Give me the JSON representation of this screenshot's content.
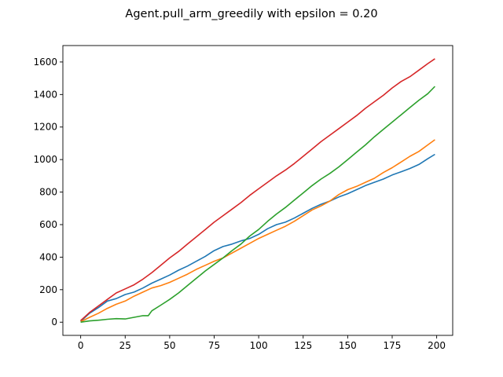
{
  "chart_data": {
    "type": "line",
    "title": "Agent.pull_arm_greedily with epsilon = 0.20",
    "xlabel": "",
    "ylabel": "",
    "xlim": [
      -10,
      209
    ],
    "ylim": [
      -81,
      1701
    ],
    "xticks": [
      0,
      25,
      50,
      75,
      100,
      125,
      150,
      175,
      200
    ],
    "yticks": [
      0,
      200,
      400,
      600,
      800,
      1000,
      1200,
      1400,
      1600
    ],
    "grid": false,
    "legend": "none",
    "series": [
      {
        "color": "#1f77b4",
        "points": [
          [
            0,
            5
          ],
          [
            5,
            55
          ],
          [
            10,
            90
          ],
          [
            15,
            130
          ],
          [
            20,
            145
          ],
          [
            25,
            170
          ],
          [
            30,
            185
          ],
          [
            35,
            210
          ],
          [
            40,
            240
          ],
          [
            45,
            265
          ],
          [
            50,
            290
          ],
          [
            55,
            320
          ],
          [
            60,
            345
          ],
          [
            65,
            375
          ],
          [
            70,
            405
          ],
          [
            75,
            440
          ],
          [
            80,
            465
          ],
          [
            85,
            480
          ],
          [
            90,
            500
          ],
          [
            95,
            515
          ],
          [
            100,
            540
          ],
          [
            105,
            575
          ],
          [
            110,
            600
          ],
          [
            115,
            615
          ],
          [
            120,
            640
          ],
          [
            125,
            670
          ],
          [
            130,
            700
          ],
          [
            135,
            725
          ],
          [
            140,
            745
          ],
          [
            145,
            770
          ],
          [
            150,
            790
          ],
          [
            155,
            815
          ],
          [
            160,
            840
          ],
          [
            165,
            860
          ],
          [
            170,
            880
          ],
          [
            175,
            905
          ],
          [
            180,
            925
          ],
          [
            185,
            945
          ],
          [
            190,
            970
          ],
          [
            195,
            1005
          ],
          [
            199,
            1032
          ]
        ]
      },
      {
        "color": "#ff7f0e",
        "points": [
          [
            0,
            3
          ],
          [
            5,
            30
          ],
          [
            10,
            55
          ],
          [
            15,
            85
          ],
          [
            20,
            110
          ],
          [
            25,
            130
          ],
          [
            30,
            160
          ],
          [
            35,
            185
          ],
          [
            40,
            210
          ],
          [
            45,
            225
          ],
          [
            50,
            245
          ],
          [
            55,
            270
          ],
          [
            60,
            295
          ],
          [
            65,
            325
          ],
          [
            70,
            350
          ],
          [
            75,
            375
          ],
          [
            80,
            395
          ],
          [
            85,
            425
          ],
          [
            90,
            455
          ],
          [
            95,
            485
          ],
          [
            100,
            515
          ],
          [
            105,
            540
          ],
          [
            110,
            565
          ],
          [
            115,
            590
          ],
          [
            120,
            620
          ],
          [
            125,
            655
          ],
          [
            130,
            690
          ],
          [
            135,
            715
          ],
          [
            140,
            745
          ],
          [
            145,
            785
          ],
          [
            150,
            815
          ],
          [
            155,
            835
          ],
          [
            160,
            860
          ],
          [
            165,
            885
          ],
          [
            170,
            920
          ],
          [
            175,
            950
          ],
          [
            180,
            985
          ],
          [
            185,
            1020
          ],
          [
            190,
            1050
          ],
          [
            195,
            1090
          ],
          [
            199,
            1122
          ]
        ]
      },
      {
        "color": "#2ca02c",
        "points": [
          [
            0,
            0
          ],
          [
            5,
            8
          ],
          [
            10,
            12
          ],
          [
            15,
            18
          ],
          [
            20,
            22
          ],
          [
            25,
            20
          ],
          [
            30,
            30
          ],
          [
            35,
            40
          ],
          [
            38,
            40
          ],
          [
            40,
            70
          ],
          [
            45,
            105
          ],
          [
            50,
            140
          ],
          [
            55,
            180
          ],
          [
            60,
            225
          ],
          [
            65,
            270
          ],
          [
            70,
            315
          ],
          [
            75,
            355
          ],
          [
            80,
            395
          ],
          [
            85,
            440
          ],
          [
            90,
            480
          ],
          [
            95,
            530
          ],
          [
            100,
            570
          ],
          [
            105,
            620
          ],
          [
            110,
            665
          ],
          [
            115,
            705
          ],
          [
            120,
            750
          ],
          [
            125,
            795
          ],
          [
            130,
            840
          ],
          [
            135,
            880
          ],
          [
            140,
            915
          ],
          [
            145,
            955
          ],
          [
            150,
            1000
          ],
          [
            155,
            1045
          ],
          [
            160,
            1090
          ],
          [
            165,
            1140
          ],
          [
            170,
            1185
          ],
          [
            175,
            1230
          ],
          [
            180,
            1275
          ],
          [
            185,
            1320
          ],
          [
            190,
            1365
          ],
          [
            195,
            1405
          ],
          [
            199,
            1450
          ]
        ]
      },
      {
        "color": "#d62728",
        "points": [
          [
            0,
            10
          ],
          [
            5,
            60
          ],
          [
            10,
            100
          ],
          [
            15,
            140
          ],
          [
            20,
            180
          ],
          [
            25,
            205
          ],
          [
            30,
            230
          ],
          [
            35,
            265
          ],
          [
            40,
            305
          ],
          [
            45,
            350
          ],
          [
            50,
            395
          ],
          [
            55,
            435
          ],
          [
            60,
            480
          ],
          [
            65,
            525
          ],
          [
            70,
            570
          ],
          [
            75,
            615
          ],
          [
            80,
            655
          ],
          [
            85,
            695
          ],
          [
            90,
            735
          ],
          [
            95,
            780
          ],
          [
            100,
            820
          ],
          [
            105,
            860
          ],
          [
            110,
            900
          ],
          [
            115,
            935
          ],
          [
            120,
            975
          ],
          [
            125,
            1020
          ],
          [
            130,
            1065
          ],
          [
            135,
            1110
          ],
          [
            140,
            1150
          ],
          [
            145,
            1190
          ],
          [
            150,
            1230
          ],
          [
            155,
            1270
          ],
          [
            160,
            1315
          ],
          [
            165,
            1355
          ],
          [
            170,
            1395
          ],
          [
            175,
            1440
          ],
          [
            180,
            1480
          ],
          [
            185,
            1510
          ],
          [
            190,
            1550
          ],
          [
            195,
            1590
          ],
          [
            199,
            1620
          ]
        ]
      }
    ]
  }
}
